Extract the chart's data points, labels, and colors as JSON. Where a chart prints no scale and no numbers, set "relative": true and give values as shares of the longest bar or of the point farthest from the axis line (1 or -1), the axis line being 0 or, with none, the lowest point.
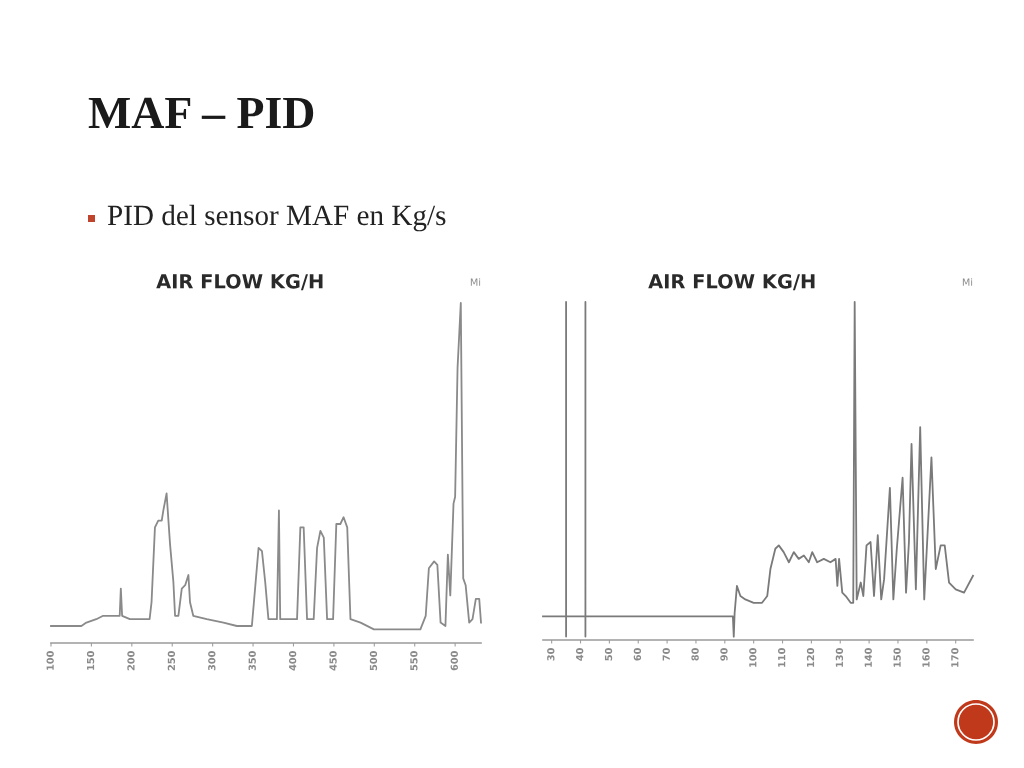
{
  "chart_data": [
    {
      "type": "line",
      "title": "AIR FLOW KG/H",
      "relative": true,
      "annotations": [
        "MAF – PID",
        "PID del sensor MAF en Kg/s",
        "Mi"
      ],
      "xlim": [
        100,
        632
      ],
      "xticks": [
        100,
        150,
        200,
        250,
        300,
        350,
        400,
        450,
        500,
        550,
        600
      ],
      "series": [
        {
          "color": "#8a8a8a",
          "x": [
            100,
            137.6,
            143.8,
            156,
            164.5,
            177,
            185,
            186.4,
            188,
            197.6,
            210,
            222,
            224.4,
            228.6,
            232.7,
            237,
            239,
            243,
            247.3,
            251.4,
            253.5,
            257.6,
            261.8,
            266,
            270,
            272,
            276,
            292.7,
            313.4,
            330,
            348.5,
            351.4,
            356.8,
            361,
            365,
            369,
            379.5,
            382,
            383.6,
            404.4,
            408.5,
            412.6,
            416.8,
            425,
            429.2,
            433.3,
            437.5,
            441.6,
            449,
            453,
            458,
            462,
            466.5,
            470.5,
            483,
            499.5,
            520,
            557,
            563.6,
            567.5,
            574,
            578,
            582,
            588,
            591,
            594,
            598,
            600,
            603,
            607,
            610,
            613,
            617.4,
            621.5,
            625.6,
            629.8,
            632
          ],
          "values": [
            0.05,
            0.05,
            0.06,
            0.07,
            0.08,
            0.08,
            0.08,
            0.16,
            0.08,
            0.07,
            0.07,
            0.07,
            0.12,
            0.34,
            0.36,
            0.36,
            0.39,
            0.44,
            0.29,
            0.18,
            0.08,
            0.08,
            0.16,
            0.17,
            0.2,
            0.12,
            0.08,
            0.07,
            0.06,
            0.05,
            0.05,
            0.13,
            0.28,
            0.27,
            0.18,
            0.07,
            0.07,
            0.39,
            0.07,
            0.07,
            0.34,
            0.34,
            0.07,
            0.07,
            0.28,
            0.33,
            0.31,
            0.07,
            0.07,
            0.35,
            0.35,
            0.37,
            0.34,
            0.07,
            0.06,
            0.04,
            0.04,
            0.04,
            0.08,
            0.22,
            0.24,
            0.23,
            0.06,
            0.05,
            0.26,
            0.14,
            0.41,
            0.43,
            0.81,
            1.0,
            0.19,
            0.17,
            0.06,
            0.07,
            0.13,
            0.13,
            0.06
          ]
        }
      ]
    },
    {
      "type": "line",
      "title": "AIR FLOW KG/H",
      "relative": true,
      "annotations": [
        "Mi"
      ],
      "xlim": [
        27,
        176
      ],
      "xticks": [
        30,
        40,
        50,
        60,
        70,
        80,
        90,
        100,
        110,
        120,
        130,
        140,
        150,
        160,
        170
      ],
      "series": [
        {
          "color": "#7a7a7a",
          "x": [
            27,
            35,
            35,
            35,
            35,
            41.7,
            41.7,
            41.7,
            41.7,
            92.8,
            93.1,
            93.4,
            94.2,
            95.4,
            97.1,
            100,
            102.9,
            104.7,
            105.8,
            107.5,
            108.7,
            110.4,
            112.2,
            113.9,
            115.6,
            117.4,
            119.1,
            120.3,
            122,
            124.3,
            126.6,
            128.4,
            129,
            129.6,
            130.7,
            131.9,
            133.6,
            134.5,
            135,
            135.7,
            137.1,
            138,
            139.1,
            140.5,
            141.7,
            143,
            144.2,
            145.2,
            147.2,
            148.4,
            149.6,
            151.6,
            152.8,
            153.8,
            154.7,
            156.2,
            157.7,
            159.1,
            161.6,
            163.1,
            164.8,
            166.2,
            167.7,
            170,
            172.9,
            176
          ],
          "values": [
            0.07,
            0.07,
            1.0,
            0.01,
            0.07,
            0.07,
            1.0,
            0.01,
            0.07,
            0.07,
            0.01,
            0.08,
            0.16,
            0.13,
            0.12,
            0.11,
            0.11,
            0.13,
            0.21,
            0.27,
            0.28,
            0.26,
            0.23,
            0.26,
            0.24,
            0.25,
            0.23,
            0.26,
            0.23,
            0.24,
            0.23,
            0.24,
            0.16,
            0.24,
            0.14,
            0.13,
            0.11,
            0.11,
            1.0,
            0.12,
            0.17,
            0.13,
            0.28,
            0.29,
            0.13,
            0.31,
            0.12,
            0.18,
            0.45,
            0.12,
            0.27,
            0.48,
            0.14,
            0.29,
            0.58,
            0.15,
            0.63,
            0.12,
            0.54,
            0.21,
            0.28,
            0.28,
            0.17,
            0.15,
            0.14,
            0.19
          ]
        }
      ]
    }
  ]
}
